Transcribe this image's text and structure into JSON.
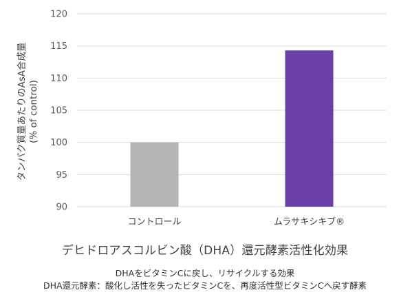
{
  "chart_data": {
    "type": "bar",
    "categories": [
      "コントロール",
      "ムラサキシキブ®"
    ],
    "values": [
      100,
      114.3
    ],
    "colors": [
      "#b3b3b3",
      "#6a3fa8"
    ],
    "ylabel_line1": "タンパク質量あたりのAsA合成量",
    "ylabel_line2": "(% of control)",
    "ylim": [
      90,
      120
    ],
    "yticks": [
      90,
      95,
      100,
      105,
      110,
      115,
      120
    ],
    "grid": true,
    "gridColor": "#d9d9d9"
  },
  "caption": {
    "main": "デヒドロアスコルビン酸（DHA）還元酵素活性化効果",
    "sub1": "DHAをビタミンCに戻し、リサイクルする効果",
    "sub2": "DHA還元酵素：酸化し活性を失ったビタミンCを、再度活性型ビタミンCへ戻す酵素"
  }
}
